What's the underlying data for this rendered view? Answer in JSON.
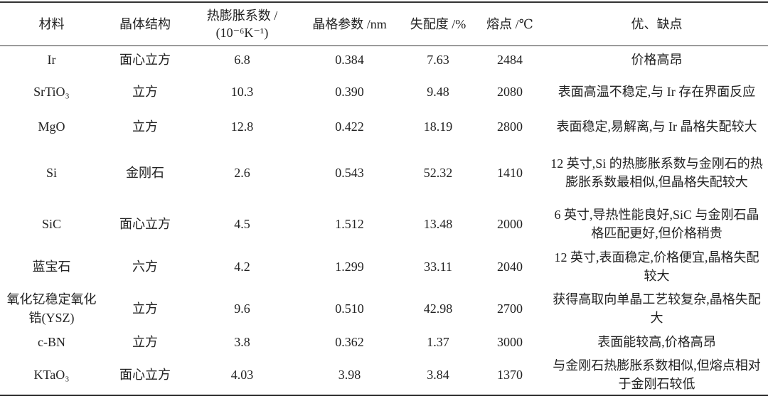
{
  "table": {
    "header": [
      "材料",
      "晶体结构",
      "热膨胀系数 /\n(10⁻⁶K⁻¹)",
      "晶格参数 /nm",
      "失配度 /%",
      "熔点 /℃",
      "优、缺点"
    ],
    "rows": [
      [
        "Ir",
        "面心立方",
        "6.8",
        "0.384",
        "7.63",
        "2484",
        "价格高昂"
      ],
      [
        "SrTiO₃",
        "立方",
        "10.3",
        "0.390",
        "9.48",
        "2080",
        "表面高温不稳定,与 Ir 存在界面反应"
      ],
      [
        "MgO",
        "立方",
        "12.8",
        "0.422",
        "18.19",
        "2800",
        "表面稳定,易解离,与 Ir 晶格失配较大"
      ],
      [
        "Si",
        "金刚石",
        "2.6",
        "0.543",
        "52.32",
        "1410",
        "12 英寸,Si 的热膨胀系数与金刚石的热膨胀系数最相似,但晶格失配较大"
      ],
      [
        "SiC",
        "面心立方",
        "4.5",
        "1.512",
        "13.48",
        "2000",
        "6 英寸,导热性能良好,SiC 与金刚石晶格匹配更好,但价格稍贵"
      ],
      [
        "蓝宝石",
        "六方",
        "4.2",
        "1.299",
        "33.11",
        "2040",
        "12 英寸,表面稳定,价格便宜,晶格失配较大"
      ],
      [
        "氧化钇稳定氧化锆(YSZ)",
        "立方",
        "9.6",
        "0.510",
        "42.98",
        "2700",
        "获得高取向单晶工艺较复杂,晶格失配大"
      ],
      [
        "c-BN",
        "立方",
        "3.8",
        "0.362",
        "1.37",
        "3000",
        "表面能较高,价格高昂"
      ],
      [
        "KTaO₃",
        "面心立方",
        "4.03",
        "3.98",
        "3.84",
        "1370",
        "与金刚石热膨胀系数相似,但熔点相对于金刚石较低"
      ]
    ]
  }
}
